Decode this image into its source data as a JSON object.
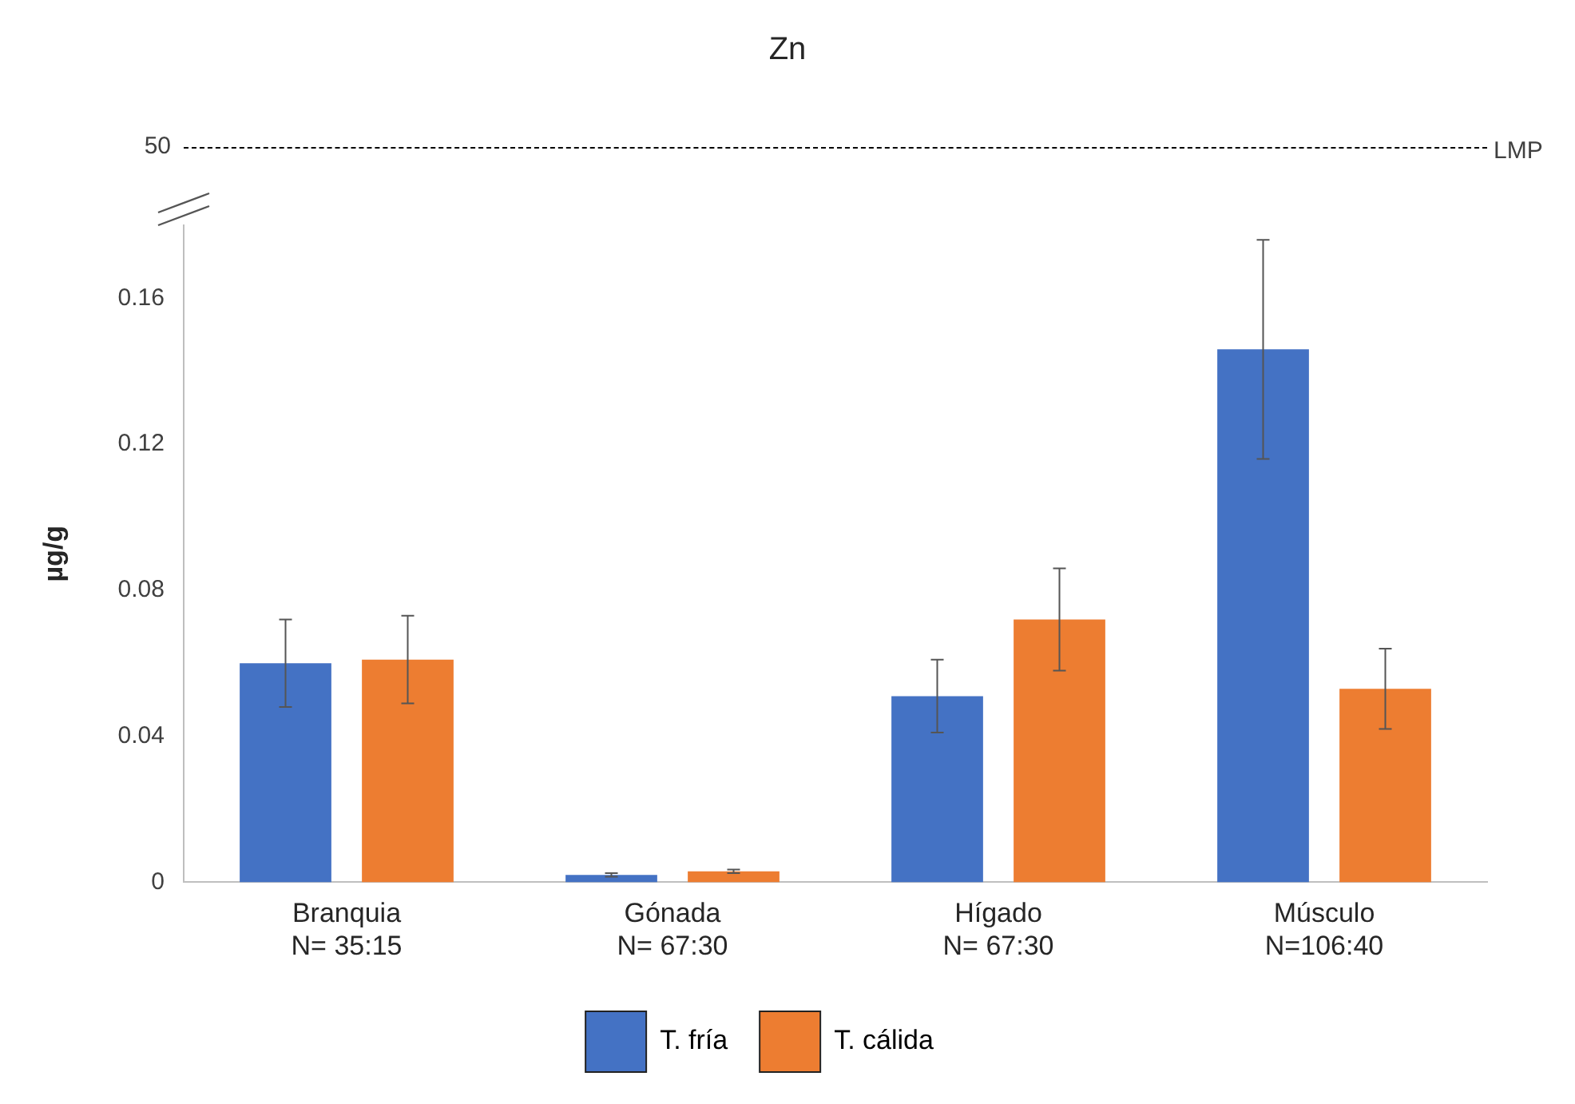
{
  "chart_data": [
    {
      "type": "other",
      "title": "Zn",
      "annotations": [
        "50",
        "LMP"
      ]
    },
    {
      "type": "bar",
      "ylabel": "µg/g",
      "categories": [
        "Branquia\nN= 35:15",
        "Gónada\nN= 67:30",
        "Hígado\nN= 67:30",
        "Músculo\nN=106:40"
      ],
      "series": [
        {
          "name": "T. fría",
          "color": "#4472c4",
          "values": [
            0.06,
            0.002,
            0.051,
            0.146
          ],
          "errors": [
            0.012,
            0.0005,
            0.01,
            0.03
          ]
        },
        {
          "name": "T. cálida",
          "color": "#ed7d31",
          "values": [
            0.061,
            0.003,
            0.072,
            0.053
          ],
          "errors": [
            0.012,
            0.0005,
            0.014,
            0.011
          ]
        }
      ],
      "ylim": [
        0,
        0.18
      ],
      "yticks": [
        0,
        0.04,
        0.08,
        0.12,
        0.16
      ],
      "grid": false,
      "legend": "bottom"
    }
  ]
}
